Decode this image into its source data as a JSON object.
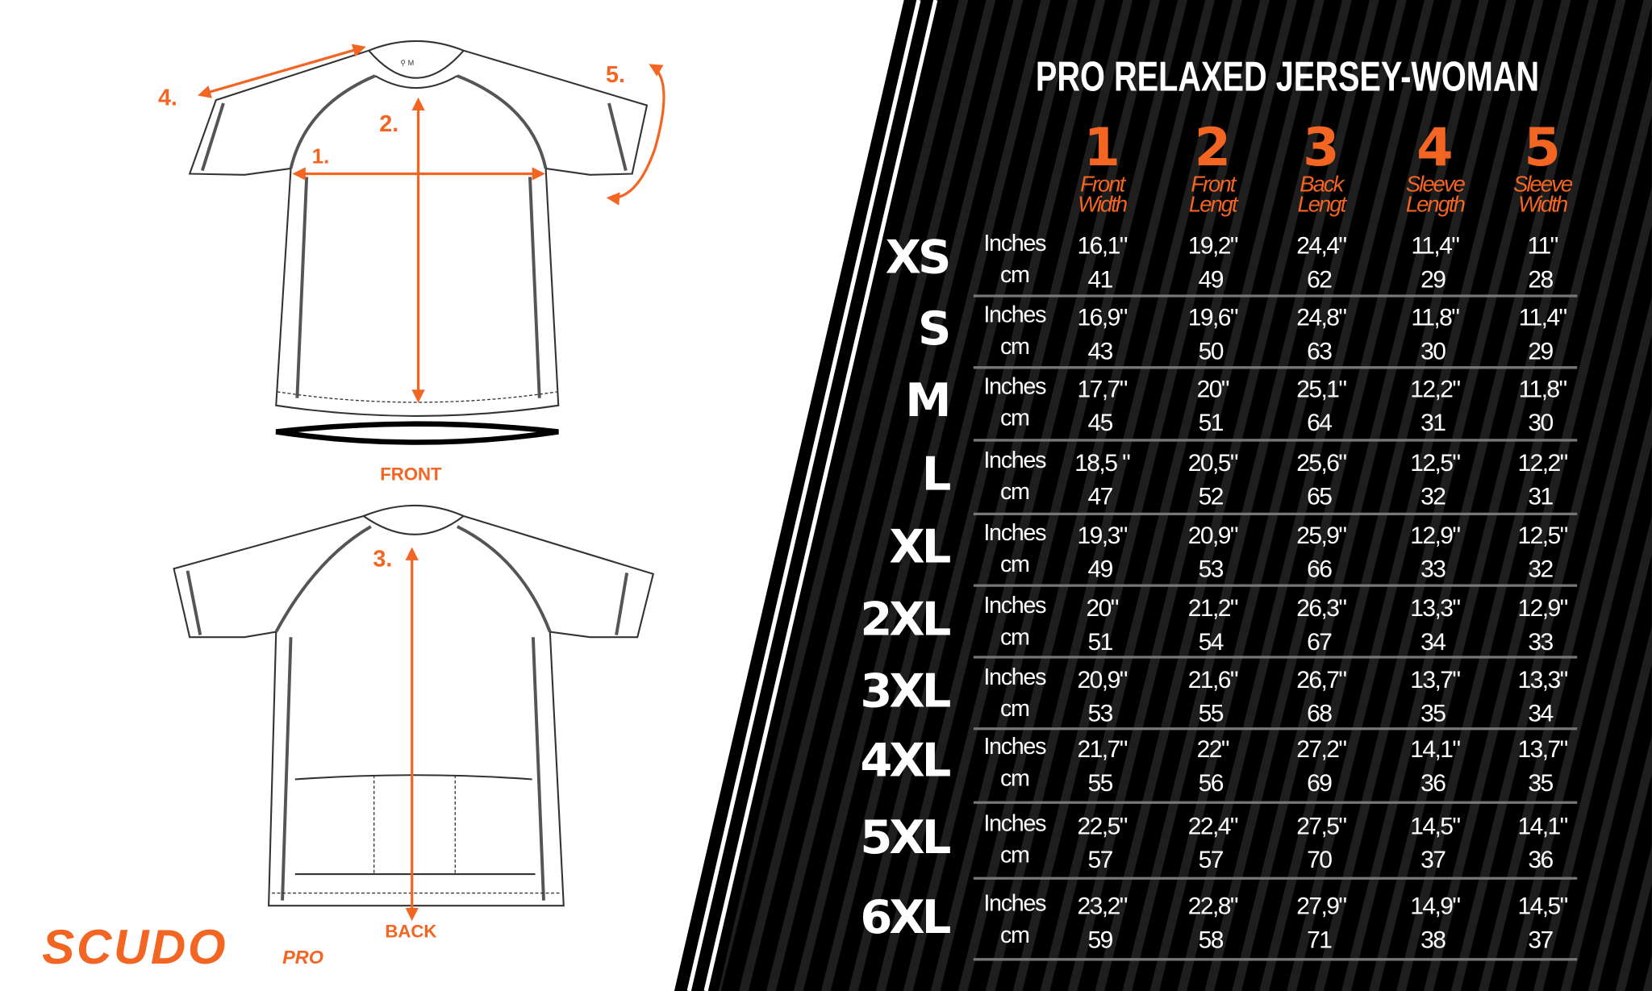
{
  "title": "PRO RELAXED JERSEY-WOMAN",
  "accent_color": "#f26522",
  "diagram": {
    "front_label": "FRONT",
    "back_label": "BACK",
    "markers": [
      "1.",
      "2.",
      "3.",
      "4.",
      "5."
    ]
  },
  "logo": {
    "main": "SCUDO",
    "sub": "PRO"
  },
  "table": {
    "unit_inches": "Inches",
    "unit_cm": "cm",
    "columns": [
      {
        "number": "1",
        "line1": "Front",
        "line2": "Width"
      },
      {
        "number": "2",
        "line1": "Front",
        "line2": "Lengt"
      },
      {
        "number": "3",
        "line1": "Back",
        "line2": "Lengt"
      },
      {
        "number": "4",
        "line1": "Sleeve",
        "line2": "Length"
      },
      {
        "number": "5",
        "line1": "Sleeve",
        "line2": "Width"
      }
    ],
    "rows": [
      {
        "size": "XS",
        "inches": [
          "16,1\"",
          "19,2\"",
          "24,4\"",
          "11,4\"",
          "11\""
        ],
        "cm": [
          "41",
          "49",
          "62",
          "29",
          "28"
        ]
      },
      {
        "size": "S",
        "inches": [
          "16,9\"",
          "19,6\"",
          "24,8\"",
          "11,8\"",
          "11,4\""
        ],
        "cm": [
          "43",
          "50",
          "63",
          "30",
          "29"
        ]
      },
      {
        "size": "M",
        "inches": [
          "17,7\"",
          "20\"",
          "25,1\"",
          "12,2\"",
          "11,8\""
        ],
        "cm": [
          "45",
          "51",
          "64",
          "31",
          "30"
        ]
      },
      {
        "size": "L",
        "inches": [
          "18,5 \"",
          "20,5\"",
          "25,6\"",
          "12,5\"",
          "12,2\""
        ],
        "cm": [
          "47",
          "52",
          "65",
          "32",
          "31"
        ]
      },
      {
        "size": "XL",
        "inches": [
          "19,3\"",
          "20,9\"",
          "25,9\"",
          "12,9\"",
          "12,5\""
        ],
        "cm": [
          "49",
          "53",
          "66",
          "33",
          "32"
        ]
      },
      {
        "size": "2XL",
        "inches": [
          "20\"",
          "21,2\"",
          "26,3\"",
          "13,3\"",
          "12,9\""
        ],
        "cm": [
          "51",
          "54",
          "67",
          "34",
          "33"
        ]
      },
      {
        "size": "3XL",
        "inches": [
          "20,9\"",
          "21,6\"",
          "26,7\"",
          "13,7\"",
          "13,3\""
        ],
        "cm": [
          "53",
          "55",
          "68",
          "35",
          "34"
        ]
      },
      {
        "size": "4XL",
        "inches": [
          "21,7\"",
          "22\"",
          "27,2\"",
          "14,1\"",
          "13,7\""
        ],
        "cm": [
          "55",
          "56",
          "69",
          "36",
          "35"
        ]
      },
      {
        "size": "5XL",
        "inches": [
          "22,5\"",
          "22,4\"",
          "27,5\"",
          "14,5\"",
          "14,1\""
        ],
        "cm": [
          "57",
          "57",
          "70",
          "37",
          "36"
        ]
      },
      {
        "size": "6XL",
        "inches": [
          "23,2\"",
          "22,8\"",
          "27,9\"",
          "14,9\"",
          "14,5\""
        ],
        "cm": [
          "59",
          "58",
          "71",
          "38",
          "37"
        ]
      }
    ]
  }
}
